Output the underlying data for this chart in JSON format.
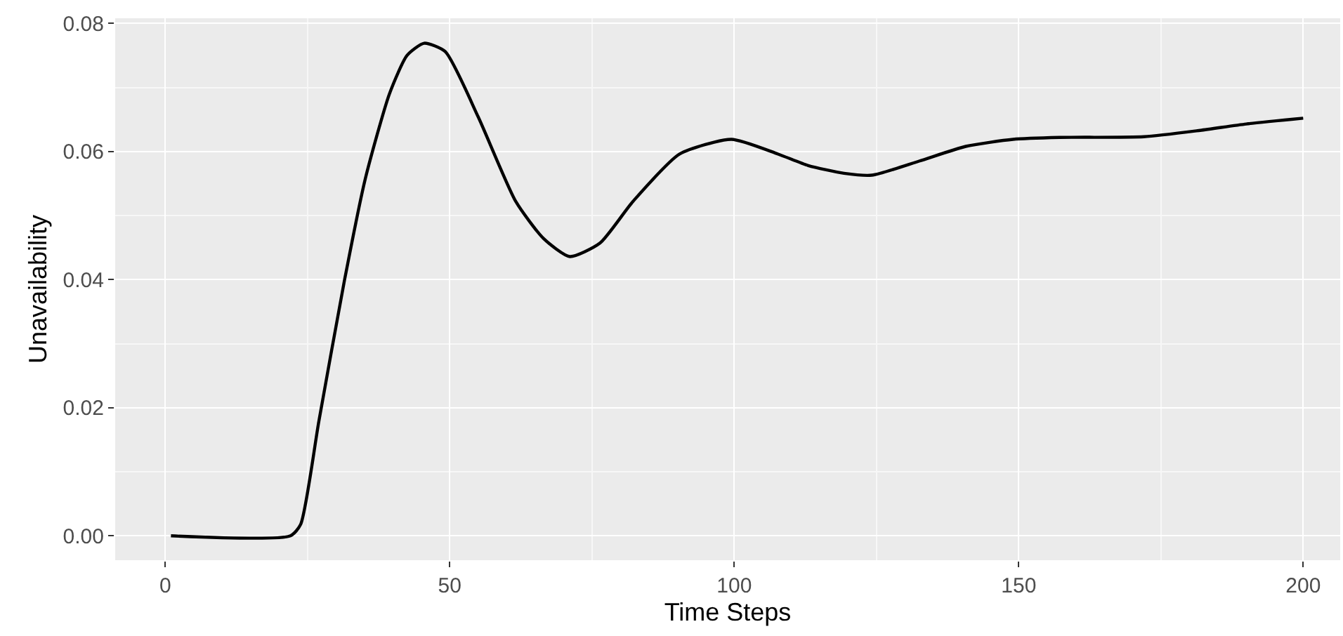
{
  "chart_data": {
    "type": "line",
    "xlabel": "Time Steps",
    "ylabel": "Unavailability",
    "x": [
      1,
      22,
      23.8,
      27,
      31.5,
      35.2,
      39.4,
      42.5,
      45.5,
      49.2,
      55,
      61.6,
      66.5,
      71.1,
      76.4,
      82.2,
      90.4,
      99.5,
      107.7,
      113,
      119.3,
      124.2,
      132.5,
      140.7,
      149,
      157.2,
      172,
      181.9,
      190,
      200
    ],
    "series": [
      {
        "color": "#000000",
        "values": [
          0,
          0,
          0.0018,
          0.0179,
          0.0399,
          0.0559,
          0.069,
          0.075,
          0.0769,
          0.0756,
          0.0654,
          0.0522,
          0.0464,
          0.0436,
          0.0457,
          0.0522,
          0.0596,
          0.0619,
          0.0596,
          0.0578,
          0.0566,
          0.0563,
          0.0585,
          0.0608,
          0.0619,
          0.0622,
          0.0623,
          0.0633,
          0.0643,
          0.0652
        ]
      }
    ],
    "xlim": [
      -8.8,
      206.5
    ],
    "ylim": [
      -0.0038,
      0.0808
    ],
    "xticks": [
      0,
      50,
      100,
      150,
      200
    ],
    "yticks": [
      {
        "value": 0,
        "label": "0.00"
      },
      {
        "value": 0.02,
        "label": "0.02"
      },
      {
        "value": 0.04,
        "label": "0.04"
      },
      {
        "value": 0.06,
        "label": "0.06"
      },
      {
        "value": 0.08,
        "label": "0.08"
      }
    ],
    "grid": true,
    "legend": false,
    "marker": "none",
    "line_style": "solid"
  }
}
